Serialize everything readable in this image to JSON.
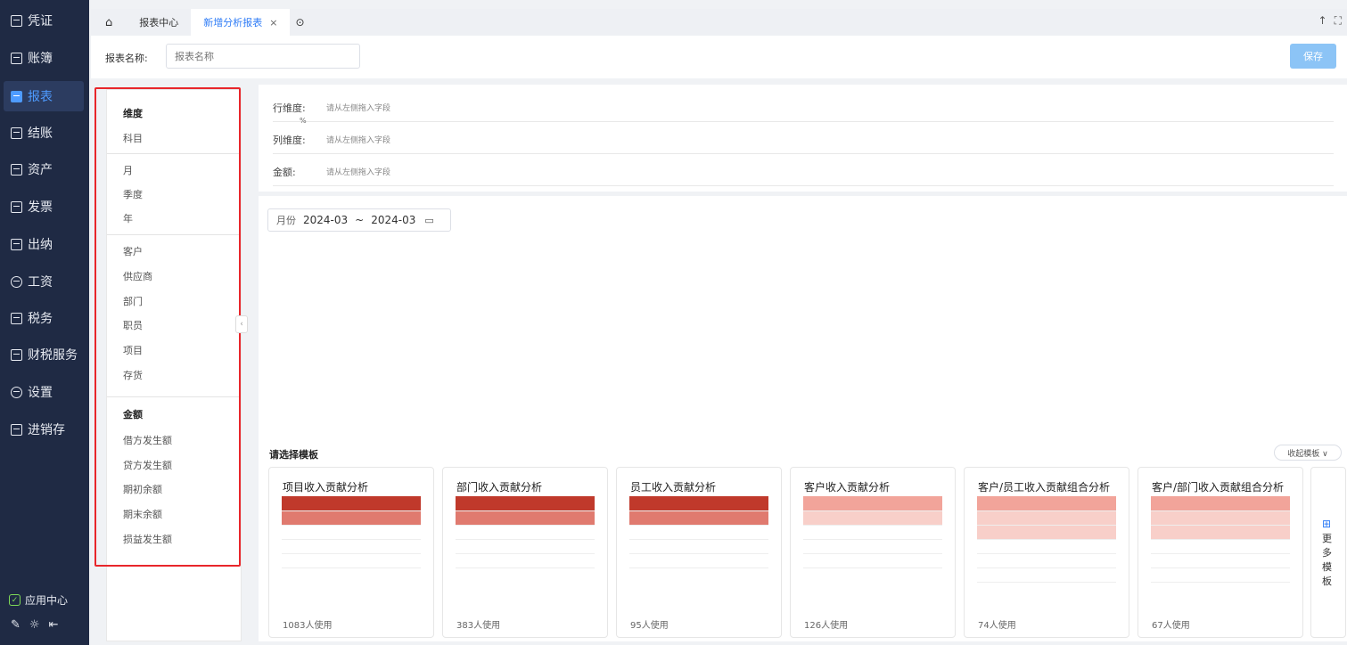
{
  "nav": {
    "items": [
      {
        "label": "凭证",
        "icon": "voucher-icon"
      },
      {
        "label": "账簿",
        "icon": "ledger-icon"
      },
      {
        "label": "报表",
        "icon": "report-icon",
        "active": true
      },
      {
        "label": "结账",
        "icon": "close-account-icon"
      },
      {
        "label": "资产",
        "icon": "asset-icon"
      },
      {
        "label": "发票",
        "icon": "invoice-icon"
      },
      {
        "label": "出纳",
        "icon": "cashier-icon"
      },
      {
        "label": "工资",
        "icon": "salary-icon"
      },
      {
        "label": "税务",
        "icon": "tax-icon"
      },
      {
        "label": "财税服务",
        "icon": "finance-service-icon"
      },
      {
        "label": "设置",
        "icon": "settings-icon"
      },
      {
        "label": "进销存",
        "icon": "inventory-icon"
      }
    ],
    "app_center": "应用中心",
    "active_color": "#4e9bff"
  },
  "tabs": {
    "report_center": "报表中心",
    "new_report": "新增分析报表",
    "close": "×"
  },
  "header": {
    "name_label": "报表名称:",
    "name_placeholder": "报表名称",
    "save": "保存"
  },
  "fields": {
    "dim_heading": "维度",
    "subject": "科目",
    "month": "月",
    "quarter": "季度",
    "year": "年",
    "customer": "客户",
    "supplier": "供应商",
    "department": "部门",
    "employee": "职员",
    "project": "项目",
    "stock": "存货",
    "amount_heading": "金额",
    "debit": "借方发生额",
    "credit": "贷方发生额",
    "opening": "期初余额",
    "closing": "期末余额",
    "pnl": "损益发生额"
  },
  "dims": {
    "row_label": "行维度:",
    "row_hint": "请从左侧拖入字段",
    "row_mark": "%",
    "col_label": "列维度:",
    "col_hint": "请从左侧拖入字段",
    "amount_label": "金额:",
    "amount_hint": "请从左侧拖入字段"
  },
  "date_range": {
    "label": "月份",
    "start": "2024-03",
    "sep": "~",
    "end": "2024-03"
  },
  "templates": {
    "title": "请选择模板",
    "collapse": "收起模板",
    "cards": [
      {
        "title": "项目收入贡献分析",
        "uses": "1083人使用"
      },
      {
        "title": "部门收入贡献分析",
        "uses": "383人使用"
      },
      {
        "title": "员工收入贡献分析",
        "uses": "95人使用"
      },
      {
        "title": "客户收入贡献分析",
        "uses": "126人使用"
      },
      {
        "title": "客户/员工收入贡献组合分析",
        "uses": "74人使用"
      },
      {
        "title": "客户/部门收入贡献组合分析",
        "uses": "67人使用"
      }
    ],
    "more": "更多模板",
    "highlight_color": "#e8262b"
  }
}
